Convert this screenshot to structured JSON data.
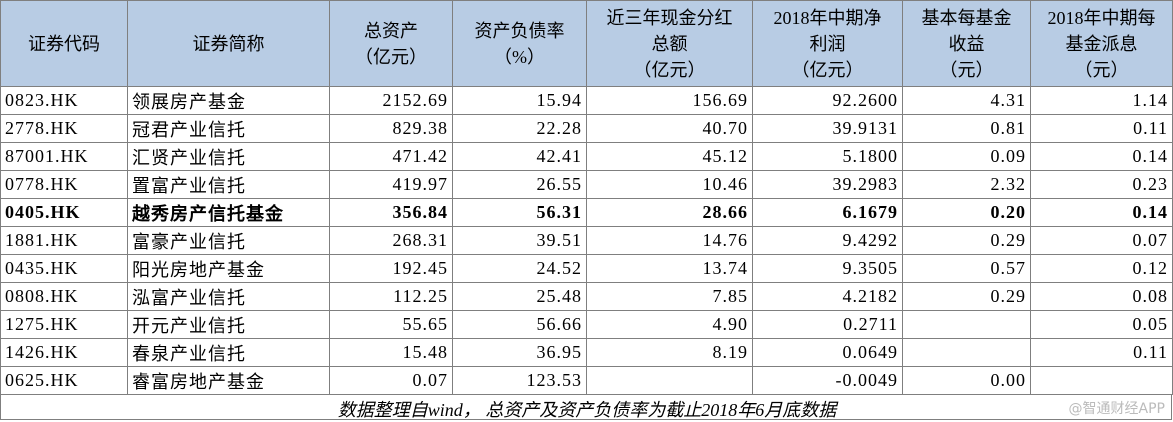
{
  "table": {
    "headers": [
      "证券代码",
      "证券简称",
      "总资产\n（亿元）",
      "资产负债率\n（%）",
      "近三年现金分红\n总额\n（亿元）",
      "2018年中期净\n利润\n（亿元）",
      "基本每基金\n收益\n（元）",
      "2018年中期每\n基金派息\n（元）"
    ],
    "bold_row": 4,
    "rows": [
      [
        "0823.HK",
        "领展房产基金",
        "2152.69",
        "15.94",
        "156.69",
        "92.2600",
        "4.31",
        "1.14"
      ],
      [
        "2778.HK",
        "冠君产业信托",
        "829.38",
        "22.28",
        "40.70",
        "39.9131",
        "0.81",
        "0.11"
      ],
      [
        "87001.HK",
        "汇贤产业信托",
        "471.42",
        "42.41",
        "45.12",
        "5.1800",
        "0.09",
        "0.14"
      ],
      [
        "0778.HK",
        "置富产业信托",
        "419.97",
        "26.55",
        "10.46",
        "39.2983",
        "2.32",
        "0.23"
      ],
      [
        "0405.HK",
        "越秀房产信托基金",
        "356.84",
        "56.31",
        "28.66",
        "6.1679",
        "0.20",
        "0.14"
      ],
      [
        "1881.HK",
        "富豪产业信托",
        "268.31",
        "39.51",
        "14.76",
        "9.4292",
        "0.29",
        "0.07"
      ],
      [
        "0435.HK",
        "阳光房地产基金",
        "192.45",
        "24.52",
        "13.74",
        "9.3505",
        "0.57",
        "0.12"
      ],
      [
        "0808.HK",
        "泓富产业信托",
        "112.25",
        "25.48",
        "7.85",
        "4.2182",
        "0.29",
        "0.08"
      ],
      [
        "1275.HK",
        "开元产业信托",
        "55.65",
        "56.66",
        "4.90",
        "0.2711",
        null,
        "0.05"
      ],
      [
        "1426.HK",
        "春泉产业信托",
        "15.48",
        "36.95",
        "8.19",
        "0.0649",
        null,
        "0.11"
      ],
      [
        "0625.HK",
        "睿富房地产基金",
        "0.07",
        "123.53",
        null,
        "-0.0049",
        "0.00",
        null
      ]
    ]
  },
  "footer": {
    "note": "数据整理自wind， 总资产及资产负债率为截止2018年6月底数据",
    "watermark": "@智通财经APP"
  }
}
